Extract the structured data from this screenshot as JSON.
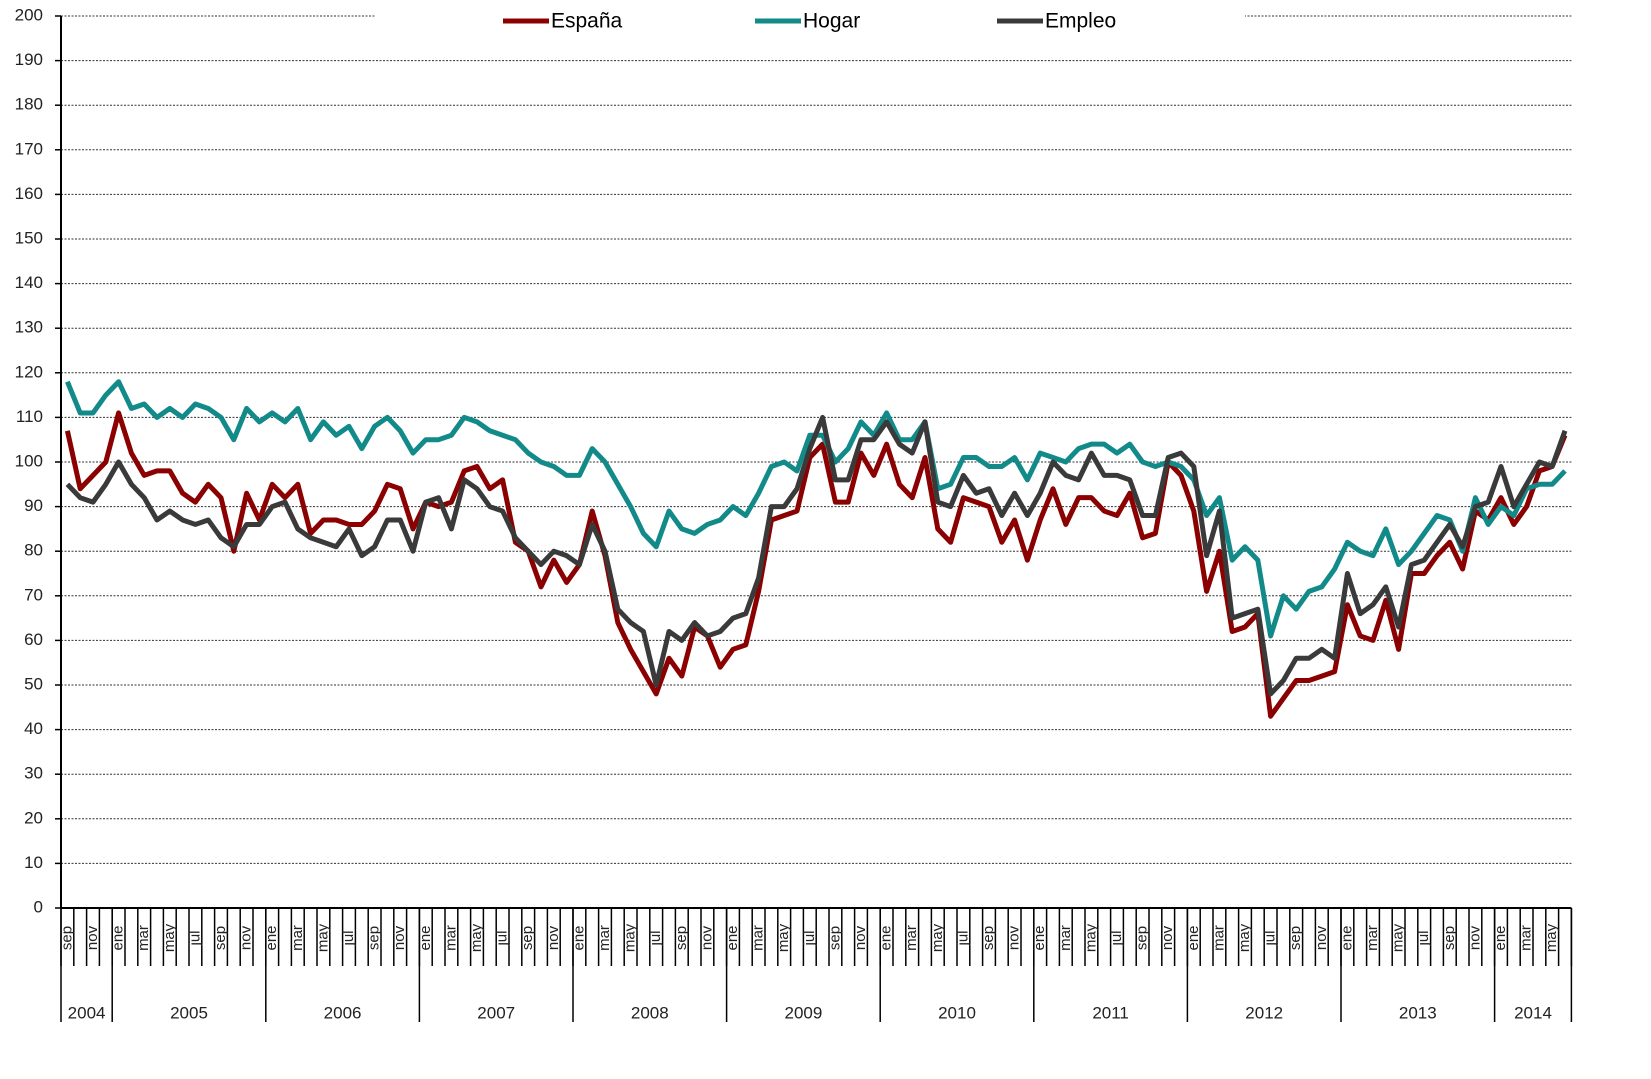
{
  "chart_data": {
    "type": "line",
    "categories": [
      "sep",
      null,
      "nov",
      null,
      "ene",
      null,
      "mar",
      null,
      "may",
      null,
      "jul",
      null,
      "sep",
      null,
      "nov",
      null,
      "ene",
      null,
      "mar",
      null,
      "may",
      null,
      "jul",
      null,
      "sep",
      null,
      "nov",
      null,
      "ene",
      null,
      "mar",
      null,
      "may",
      null,
      "jul",
      null,
      "sep",
      null,
      "nov",
      null,
      "ene",
      null,
      "mar",
      null,
      "may",
      null,
      "jul",
      null,
      "sep",
      null,
      "nov",
      null,
      "ene",
      null,
      "mar",
      null,
      "may",
      null,
      "jul",
      null,
      "sep",
      null,
      "nov",
      null,
      "ene",
      null,
      "mar",
      null,
      "may",
      null,
      "jul",
      null,
      "sep",
      null,
      "nov",
      null,
      "ene",
      null,
      "mar",
      null,
      "may",
      null,
      "jul",
      null,
      "sep",
      null,
      "nov",
      null,
      "ene",
      null,
      "mar",
      null,
      "may",
      null,
      "jul",
      null,
      "sep",
      null,
      "nov",
      null,
      "ene",
      null,
      "mar",
      null,
      "may",
      null,
      "jul",
      null,
      "sep",
      null,
      "nov",
      null,
      "ene",
      null,
      "mar",
      null,
      "may",
      null
    ],
    "x_groups": [
      {
        "label": "2004",
        "size": 4
      },
      {
        "label": "2005",
        "size": 12
      },
      {
        "label": "2006",
        "size": 12
      },
      {
        "label": "2007",
        "size": 12
      },
      {
        "label": "2008",
        "size": 12
      },
      {
        "label": "2009",
        "size": 12
      },
      {
        "label": "2010",
        "size": 12
      },
      {
        "label": "2011",
        "size": 12
      },
      {
        "label": "2012",
        "size": 12
      },
      {
        "label": "2013",
        "size": 12
      },
      {
        "label": "2014",
        "size": 6
      }
    ],
    "series": [
      {
        "name": "España",
        "color": "#8b0000",
        "values": [
          107,
          94,
          97,
          100,
          111,
          102,
          97,
          98,
          98,
          93,
          91,
          95,
          92,
          80,
          93,
          87,
          95,
          92,
          95,
          84,
          87,
          87,
          86,
          86,
          89,
          95,
          94,
          85,
          91,
          90,
          91,
          98,
          99,
          94,
          96,
          82,
          80,
          72,
          78,
          73,
          77,
          89,
          79,
          64,
          58,
          53,
          48,
          56,
          52,
          63,
          61,
          54,
          58,
          59,
          71,
          87,
          88,
          89,
          101,
          104,
          91,
          91,
          102,
          97,
          104,
          95,
          92,
          101,
          85,
          82,
          92,
          91,
          90,
          82,
          87,
          78,
          87,
          94,
          86,
          92,
          92,
          89,
          88,
          93,
          83,
          84,
          100,
          97,
          89,
          71,
          80,
          62,
          63,
          66,
          43,
          47,
          51,
          51,
          52,
          53,
          68,
          61,
          60,
          69,
          58,
          75,
          75,
          79,
          82,
          76,
          89,
          87,
          92,
          86,
          90,
          98,
          99,
          106
        ]
      },
      {
        "name": "Hogar",
        "color": "#138a8a",
        "values": [
          118,
          111,
          111,
          115,
          118,
          112,
          113,
          110,
          112,
          110,
          113,
          112,
          110,
          105,
          112,
          109,
          111,
          109,
          112,
          105,
          109,
          106,
          108,
          103,
          108,
          110,
          107,
          102,
          105,
          105,
          106,
          110,
          109,
          107,
          106,
          105,
          102,
          100,
          99,
          97,
          97,
          103,
          100,
          95,
          90,
          84,
          81,
          89,
          85,
          84,
          86,
          87,
          90,
          88,
          93,
          99,
          100,
          98,
          106,
          106,
          100,
          103,
          109,
          106,
          111,
          105,
          105,
          109,
          94,
          95,
          101,
          101,
          99,
          99,
          101,
          96,
          102,
          101,
          100,
          103,
          104,
          104,
          102,
          104,
          100,
          99,
          100,
          99,
          96,
          88,
          92,
          78,
          81,
          78,
          61,
          70,
          67,
          71,
          72,
          76,
          82,
          80,
          79,
          85,
          77,
          80,
          84,
          88,
          87,
          80,
          92,
          86,
          90,
          88,
          94,
          95,
          95,
          98
        ]
      },
      {
        "name": "Empleo",
        "color": "#3a3a3a",
        "values": [
          95,
          92,
          91,
          95,
          100,
          95,
          92,
          87,
          89,
          87,
          86,
          87,
          83,
          81,
          86,
          86,
          90,
          91,
          85,
          83,
          82,
          81,
          85,
          79,
          81,
          87,
          87,
          80,
          91,
          92,
          85,
          96,
          94,
          90,
          89,
          83,
          80,
          77,
          80,
          79,
          77,
          86,
          80,
          67,
          64,
          62,
          50,
          62,
          60,
          64,
          61,
          62,
          65,
          66,
          74,
          90,
          90,
          94,
          103,
          110,
          96,
          96,
          105,
          105,
          109,
          104,
          102,
          109,
          91,
          90,
          97,
          93,
          94,
          88,
          93,
          88,
          93,
          100,
          97,
          96,
          102,
          97,
          97,
          96,
          88,
          88,
          101,
          102,
          99,
          79,
          89,
          65,
          66,
          67,
          48,
          51,
          56,
          56,
          58,
          56,
          75,
          66,
          68,
          72,
          63,
          77,
          78,
          82,
          86,
          81,
          90,
          91,
          99,
          90,
          95,
          100,
          99,
          107
        ]
      }
    ],
    "ylim": [
      0,
      200
    ],
    "yticks": [
      0,
      10,
      20,
      30,
      40,
      50,
      60,
      70,
      80,
      90,
      100,
      110,
      120,
      130,
      140,
      150,
      160,
      170,
      180,
      190,
      200
    ],
    "grid": true,
    "legend": "top"
  }
}
